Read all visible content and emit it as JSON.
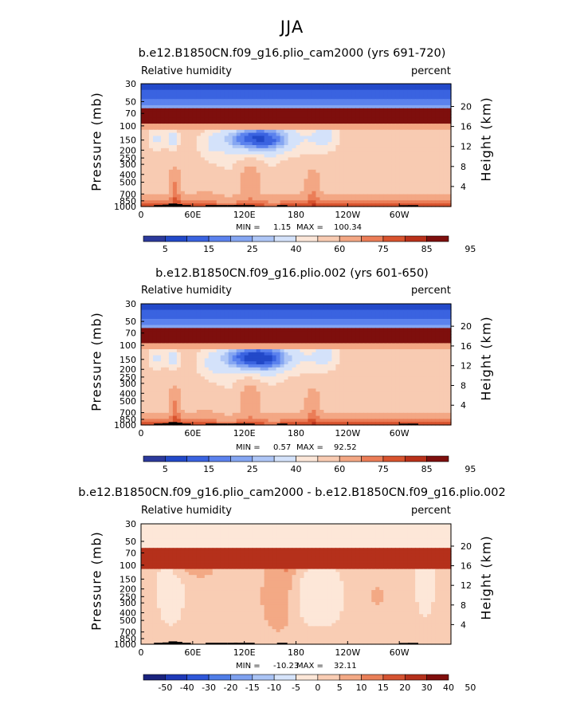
{
  "page": {
    "title": "JJA"
  },
  "palettes": {
    "rh": [
      "#2c3a9c",
      "#2249c9",
      "#3a63e0",
      "#5b82ee",
      "#85a6f2",
      "#aec6f6",
      "#d4e2fa",
      "#fbe6d8",
      "#f8cbb2",
      "#f3a784",
      "#eb7d57",
      "#d8532e",
      "#b9311a",
      "#7e0f0d"
    ],
    "diff": [
      "#1a237e",
      "#1e39b8",
      "#2e57d9",
      "#4f7de7",
      "#7ea1ef",
      "#aac4f5",
      "#d6e4fb",
      "#fde7d8",
      "#f9cdb4",
      "#f3a985",
      "#e97f58",
      "#d55331",
      "#b5301b",
      "#800e0c"
    ]
  },
  "chart_data": [
    {
      "type": "heatmap",
      "title": "b.e12.B1850CN.f09_g16.plio_cam2000 (yrs 691-720)",
      "left_label": "Relative humidity",
      "right_label": "percent",
      "ylabel": "Pressure (mb)",
      "y2label": "Height (km)",
      "xticks": [
        "0",
        "60E",
        "120E",
        "180",
        "120W",
        "60W"
      ],
      "yticks": [
        "30",
        "50",
        "70",
        "100",
        "150",
        "200",
        "250",
        "300",
        "400",
        "500",
        "700",
        "850",
        "1000"
      ],
      "y2ticks": [
        "20",
        "16",
        "12",
        "8",
        "4"
      ],
      "min_label": "MIN =",
      "min_value": "1.15",
      "max_label": "MAX =",
      "max_value": "100.34",
      "colorbar_labels": [
        "5",
        "15",
        "25",
        "40",
        "60",
        "75",
        "85",
        "95"
      ]
    },
    {
      "type": "heatmap",
      "title": "b.e12.B1850CN.f09_g16.plio.002 (yrs 601-650)",
      "left_label": "Relative humidity",
      "right_label": "percent",
      "ylabel": "Pressure (mb)",
      "y2label": "Height (km)",
      "xticks": [
        "0",
        "60E",
        "120E",
        "180",
        "120W",
        "60W"
      ],
      "yticks": [
        "30",
        "50",
        "70",
        "100",
        "150",
        "200",
        "250",
        "300",
        "400",
        "500",
        "700",
        "850",
        "1000"
      ],
      "y2ticks": [
        "20",
        "16",
        "12",
        "8",
        "4"
      ],
      "min_label": "MIN =",
      "min_value": "0.57",
      "max_label": "MAX =",
      "max_value": "92.52",
      "colorbar_labels": [
        "5",
        "15",
        "25",
        "40",
        "60",
        "75",
        "85",
        "95"
      ]
    },
    {
      "type": "heatmap",
      "title": "b.e12.B1850CN.f09_g16.plio_cam2000 - b.e12.B1850CN.f09_g16.plio.002",
      "left_label": "Relative humidity",
      "right_label": "percent",
      "ylabel": "Pressure (mb)",
      "y2label": "Height (km)",
      "xticks": [
        "0",
        "60E",
        "120E",
        "180",
        "120W",
        "60W"
      ],
      "yticks": [
        "30",
        "50",
        "70",
        "100",
        "150",
        "200",
        "250",
        "300",
        "400",
        "500",
        "700",
        "850",
        "1000"
      ],
      "y2ticks": [
        "20",
        "16",
        "12",
        "8",
        "4"
      ],
      "min_label": "MIN =",
      "min_value": "-10.23",
      "max_label": "MAX =",
      "max_value": "32.11",
      "colorbar_labels": [
        "-50",
        "-40",
        "-30",
        "-20",
        "-15",
        "-10",
        "-5",
        "0",
        "5",
        "10",
        "15",
        "20",
        "30",
        "40",
        "50"
      ]
    }
  ]
}
